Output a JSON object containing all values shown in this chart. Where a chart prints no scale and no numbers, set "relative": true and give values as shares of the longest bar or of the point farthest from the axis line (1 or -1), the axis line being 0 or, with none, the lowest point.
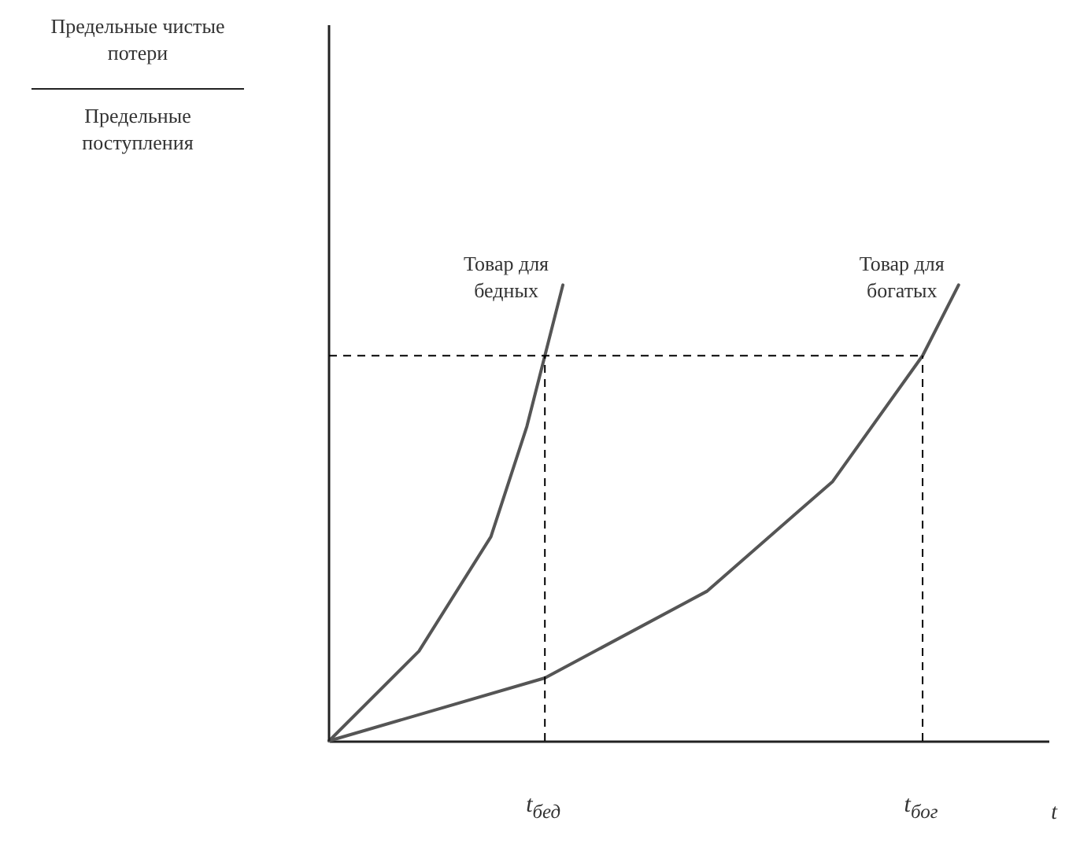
{
  "chart_data": {
    "type": "line",
    "relative": true,
    "annotations": [
      "Предельные чистые потери",
      "Предельные поступления"
    ],
    "xlabel": "t",
    "categories": [
      null,
      null,
      null,
      null,
      null,
      null,
      null,
      null,
      null,
      null,
      null,
      null,
      "t$_{бед}$",
      null,
      null,
      null,
      null,
      null,
      null,
      null,
      null,
      null,
      null,
      null,
      null,
      null,
      null,
      null,
      null,
      null,
      null,
      null,
      null,
      "t$_{бог}$",
      null,
      null,
      null,
      null,
      null,
      null,
      null
    ],
    "series": [
      {
        "name": "Товар для бедных",
        "color": "#555555",
        "values": [
          0,
          null,
          null,
          null,
          null,
          0.197,
          null,
          null,
          null,
          0.448,
          null,
          0.69,
          0.845,
          1,
          null,
          null,
          null,
          null,
          null,
          null,
          null,
          null,
          null,
          null,
          null,
          null,
          null,
          null,
          null,
          null,
          null,
          null,
          null,
          null,
          null,
          null,
          null,
          null,
          null,
          null,
          null
        ]
      },
      {
        "name": "Товар для богатых",
        "color": "#555555",
        "values": [
          0,
          null,
          null,
          null,
          null,
          null,
          null,
          null,
          null,
          null,
          null,
          null,
          0.138,
          null,
          null,
          null,
          null,
          null,
          null,
          null,
          null,
          0.328,
          null,
          null,
          null,
          null,
          null,
          null,
          0.569,
          null,
          null,
          null,
          null,
          0.845,
          null,
          1,
          null,
          null,
          null,
          null,
          null
        ]
      }
    ],
    "ref_lines": [
      {
        "axis": "y",
        "value": 0.845,
        "label": null,
        "line_style": "dashed",
        "color": "#000000"
      },
      {
        "axis": "x",
        "value": "t$_{бед}$",
        "label": null,
        "line_style": "dashed",
        "color": "#000000"
      },
      {
        "axis": "x",
        "value": "t$_{бог}$",
        "label": null,
        "line_style": "dashed",
        "color": "#000000"
      }
    ],
    "line_style": "solid"
  }
}
